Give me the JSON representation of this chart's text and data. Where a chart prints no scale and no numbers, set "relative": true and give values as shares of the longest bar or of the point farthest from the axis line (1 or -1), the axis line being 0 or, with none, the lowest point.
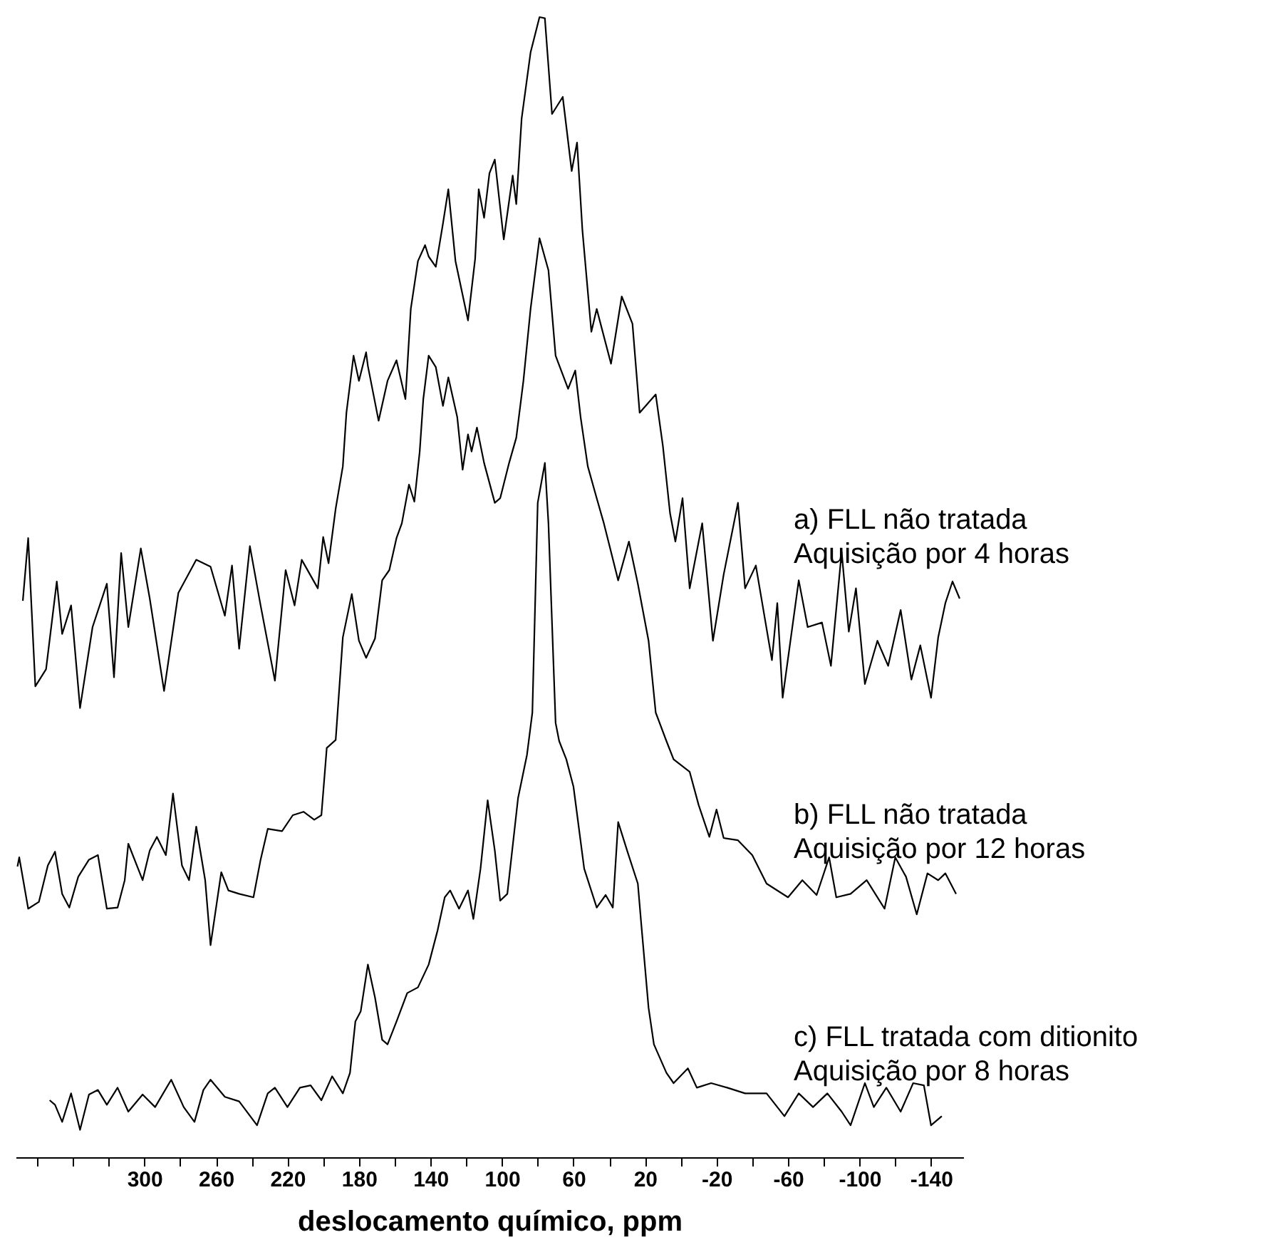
{
  "chart_data": {
    "type": "line",
    "relative": true,
    "xlabel": "deslocamento químico, ppm",
    "xlim": [
      372,
      -158
    ],
    "tick_labels": "x",
    "xticks": [
      {
        "value": 360,
        "label": null
      },
      {
        "value": 340,
        "label": null
      },
      {
        "value": 320,
        "label": null
      },
      300,
      {
        "value": 280,
        "label": null
      },
      260,
      {
        "value": 240,
        "label": null
      },
      220,
      {
        "value": 200,
        "label": null
      },
      180,
      {
        "value": 160,
        "label": null
      },
      140,
      {
        "value": 120,
        "label": null
      },
      100,
      {
        "value": 80,
        "label": null
      },
      60,
      {
        "value": 40,
        "label": null
      },
      20,
      {
        "value": 0,
        "label": null
      },
      -20,
      {
        "value": -40,
        "label": null
      },
      -60,
      {
        "value": -80,
        "label": null
      },
      -100,
      {
        "value": -120,
        "label": null
      },
      -140
    ],
    "series": [
      {
        "name": "a) FLL não tratada\nAquisição por 4 horas",
        "color": "#000000",
        "x": [
          368,
          365,
          361,
          355,
          349,
          346,
          341,
          336,
          329,
          321,
          317,
          313,
          309,
          302,
          297,
          289,
          281,
          271,
          263,
          255,
          251,
          247,
          241,
          235,
          227,
          221,
          216,
          212,
          203,
          200,
          197,
          193,
          189,
          187,
          183,
          180,
          176,
          175,
          169,
          164,
          159,
          154,
          151,
          147,
          143,
          141,
          137,
          133,
          130,
          126,
          119,
          115,
          113,
          110,
          107,
          104,
          99,
          94,
          92,
          89,
          84,
          79,
          76,
          72,
          66,
          61,
          58,
          55,
          50,
          47,
          39,
          33,
          27,
          23,
          14,
          10,
          6,
          3,
          -1,
          -5,
          -12,
          -18,
          -24,
          -32,
          -36,
          -42,
          -51,
          -54,
          -57,
          -66,
          -71,
          -79,
          -84,
          -90,
          -94,
          -98,
          -103,
          -110,
          -116,
          -123,
          -129,
          -134,
          -140,
          -144,
          -148,
          -152,
          -156
        ],
        "values": [
          0.488,
          0.543,
          0.413,
          0.428,
          0.505,
          0.459,
          0.484,
          0.394,
          0.465,
          0.503,
          0.421,
          0.53,
          0.465,
          0.534,
          0.49,
          0.409,
          0.495,
          0.524,
          0.518,
          0.475,
          0.519,
          0.446,
          0.536,
          0.484,
          0.418,
          0.515,
          0.484,
          0.524,
          0.499,
          0.544,
          0.521,
          0.569,
          0.606,
          0.653,
          0.703,
          0.681,
          0.706,
          0.694,
          0.646,
          0.681,
          0.699,
          0.665,
          0.744,
          0.786,
          0.8,
          0.79,
          0.781,
          0.819,
          0.849,
          0.786,
          0.734,
          0.788,
          0.849,
          0.824,
          0.863,
          0.875,
          0.805,
          0.861,
          0.836,
          0.911,
          0.969,
          1,
          0.999,
          0.915,
          0.93,
          0.865,
          0.89,
          0.813,
          0.724,
          0.744,
          0.696,
          0.755,
          0.731,
          0.653,
          0.669,
          0.624,
          0.565,
          0.54,
          0.578,
          0.499,
          0.556,
          0.453,
          0.511,
          0.574,
          0.499,
          0.519,
          0.436,
          0.486,
          0.403,
          0.506,
          0.465,
          0.469,
          0.431,
          0.531,
          0.461,
          0.499,
          0.415,
          0.453,
          0.431,
          0.48,
          0.419,
          0.449,
          0.403,
          0.456,
          0.486,
          0.505,
          0.49
        ]
      },
      {
        "name": "b) FLL não tratada\nAquisição por 12 horas",
        "color": "#000000",
        "x": [
          371,
          370,
          365,
          359,
          354,
          350,
          346,
          342,
          337,
          331,
          326,
          321,
          315,
          311,
          309,
          301,
          297,
          293,
          288,
          284,
          279,
          275,
          271,
          266,
          263,
          257,
          253,
          247,
          239,
          235,
          231,
          223,
          217,
          211,
          205,
          201,
          198,
          193,
          189,
          184,
          180,
          176,
          171,
          167,
          163,
          159,
          156,
          152,
          149,
          146,
          144,
          141,
          137,
          133,
          130,
          125,
          122,
          119,
          117,
          114,
          110,
          104,
          101,
          96,
          92,
          88,
          84,
          79,
          74,
          70,
          63,
          59,
          56,
          52,
          47,
          43,
          35,
          29,
          24,
          18,
          14,
          8,
          4,
          -5,
          -10,
          -16,
          -20,
          -24,
          -32,
          -40,
          -48,
          -60,
          -68,
          -76,
          -83,
          -87,
          -95,
          -104,
          -114,
          -120,
          -126,
          -132,
          -138,
          -144,
          -148,
          -154
        ],
        "values": [
          0.255,
          0.263,
          0.218,
          0.224,
          0.256,
          0.268,
          0.231,
          0.219,
          0.246,
          0.261,
          0.265,
          0.218,
          0.219,
          0.243,
          0.275,
          0.243,
          0.269,
          0.281,
          0.265,
          0.319,
          0.256,
          0.243,
          0.29,
          0.243,
          0.186,
          0.25,
          0.234,
          0.231,
          0.228,
          0.261,
          0.288,
          0.286,
          0.3,
          0.303,
          0.296,
          0.3,
          0.359,
          0.366,
          0.456,
          0.494,
          0.453,
          0.438,
          0.455,
          0.506,
          0.515,
          0.543,
          0.556,
          0.59,
          0.575,
          0.619,
          0.665,
          0.703,
          0.693,
          0.659,
          0.684,
          0.649,
          0.603,
          0.634,
          0.619,
          0.64,
          0.609,
          0.574,
          0.578,
          0.609,
          0.631,
          0.681,
          0.744,
          0.806,
          0.778,
          0.703,
          0.674,
          0.69,
          0.649,
          0.606,
          0.578,
          0.556,
          0.506,
          0.54,
          0.503,
          0.453,
          0.39,
          0.365,
          0.349,
          0.338,
          0.309,
          0.281,
          0.305,
          0.28,
          0.278,
          0.265,
          0.24,
          0.228,
          0.243,
          0.23,
          0.263,
          0.228,
          0.231,
          0.243,
          0.218,
          0.263,
          0.246,
          0.213,
          0.249,
          0.243,
          0.249,
          0.231
        ]
      },
      {
        "name": "c) FLL tratada com ditionito\nAquisição por 8 horas",
        "color": "#000000",
        "x": [
          353,
          350,
          346,
          341,
          336,
          331,
          326,
          321,
          315,
          309,
          301,
          294,
          285,
          278,
          272,
          267,
          263,
          255,
          247,
          237,
          231,
          227,
          220,
          213,
          207,
          201,
          195,
          189,
          185,
          182,
          179,
          175,
          171,
          167,
          164,
          159,
          153,
          147,
          141,
          136,
          132,
          129,
          124,
          119,
          116,
          112,
          108,
          104,
          101,
          97,
          91,
          86,
          83,
          80,
          76,
          74,
          70,
          68,
          64,
          60,
          54,
          47,
          42,
          38,
          35,
          30,
          24,
          22,
          18,
          15,
          8,
          4,
          -4,
          -9,
          -17,
          -26,
          -36,
          -48,
          -58,
          -66,
          -74,
          -82,
          -90,
          -95,
          -103,
          -108,
          -115,
          -123,
          -130,
          -136,
          -140,
          -146
        ],
        "values": [
          0.05,
          0.046,
          0.031,
          0.056,
          0.024,
          0.055,
          0.059,
          0.046,
          0.061,
          0.04,
          0.055,
          0.044,
          0.068,
          0.044,
          0.031,
          0.059,
          0.068,
          0.053,
          0.049,
          0.028,
          0.056,
          0.061,
          0.044,
          0.061,
          0.063,
          0.05,
          0.071,
          0.056,
          0.074,
          0.119,
          0.128,
          0.169,
          0.14,
          0.103,
          0.099,
          0.119,
          0.144,
          0.149,
          0.169,
          0.199,
          0.228,
          0.234,
          0.218,
          0.234,
          0.209,
          0.253,
          0.313,
          0.269,
          0.225,
          0.231,
          0.315,
          0.353,
          0.39,
          0.574,
          0.609,
          0.556,
          0.381,
          0.365,
          0.349,
          0.325,
          0.253,
          0.219,
          0.23,
          0.219,
          0.294,
          0.269,
          0.24,
          0.203,
          0.131,
          0.099,
          0.074,
          0.065,
          0.078,
          0.061,
          0.065,
          0.061,
          0.056,
          0.056,
          0.036,
          0.056,
          0.044,
          0.056,
          0.04,
          0.028,
          0.065,
          0.044,
          0.061,
          0.04,
          0.065,
          0.063,
          0.028,
          0.036
        ]
      }
    ]
  }
}
